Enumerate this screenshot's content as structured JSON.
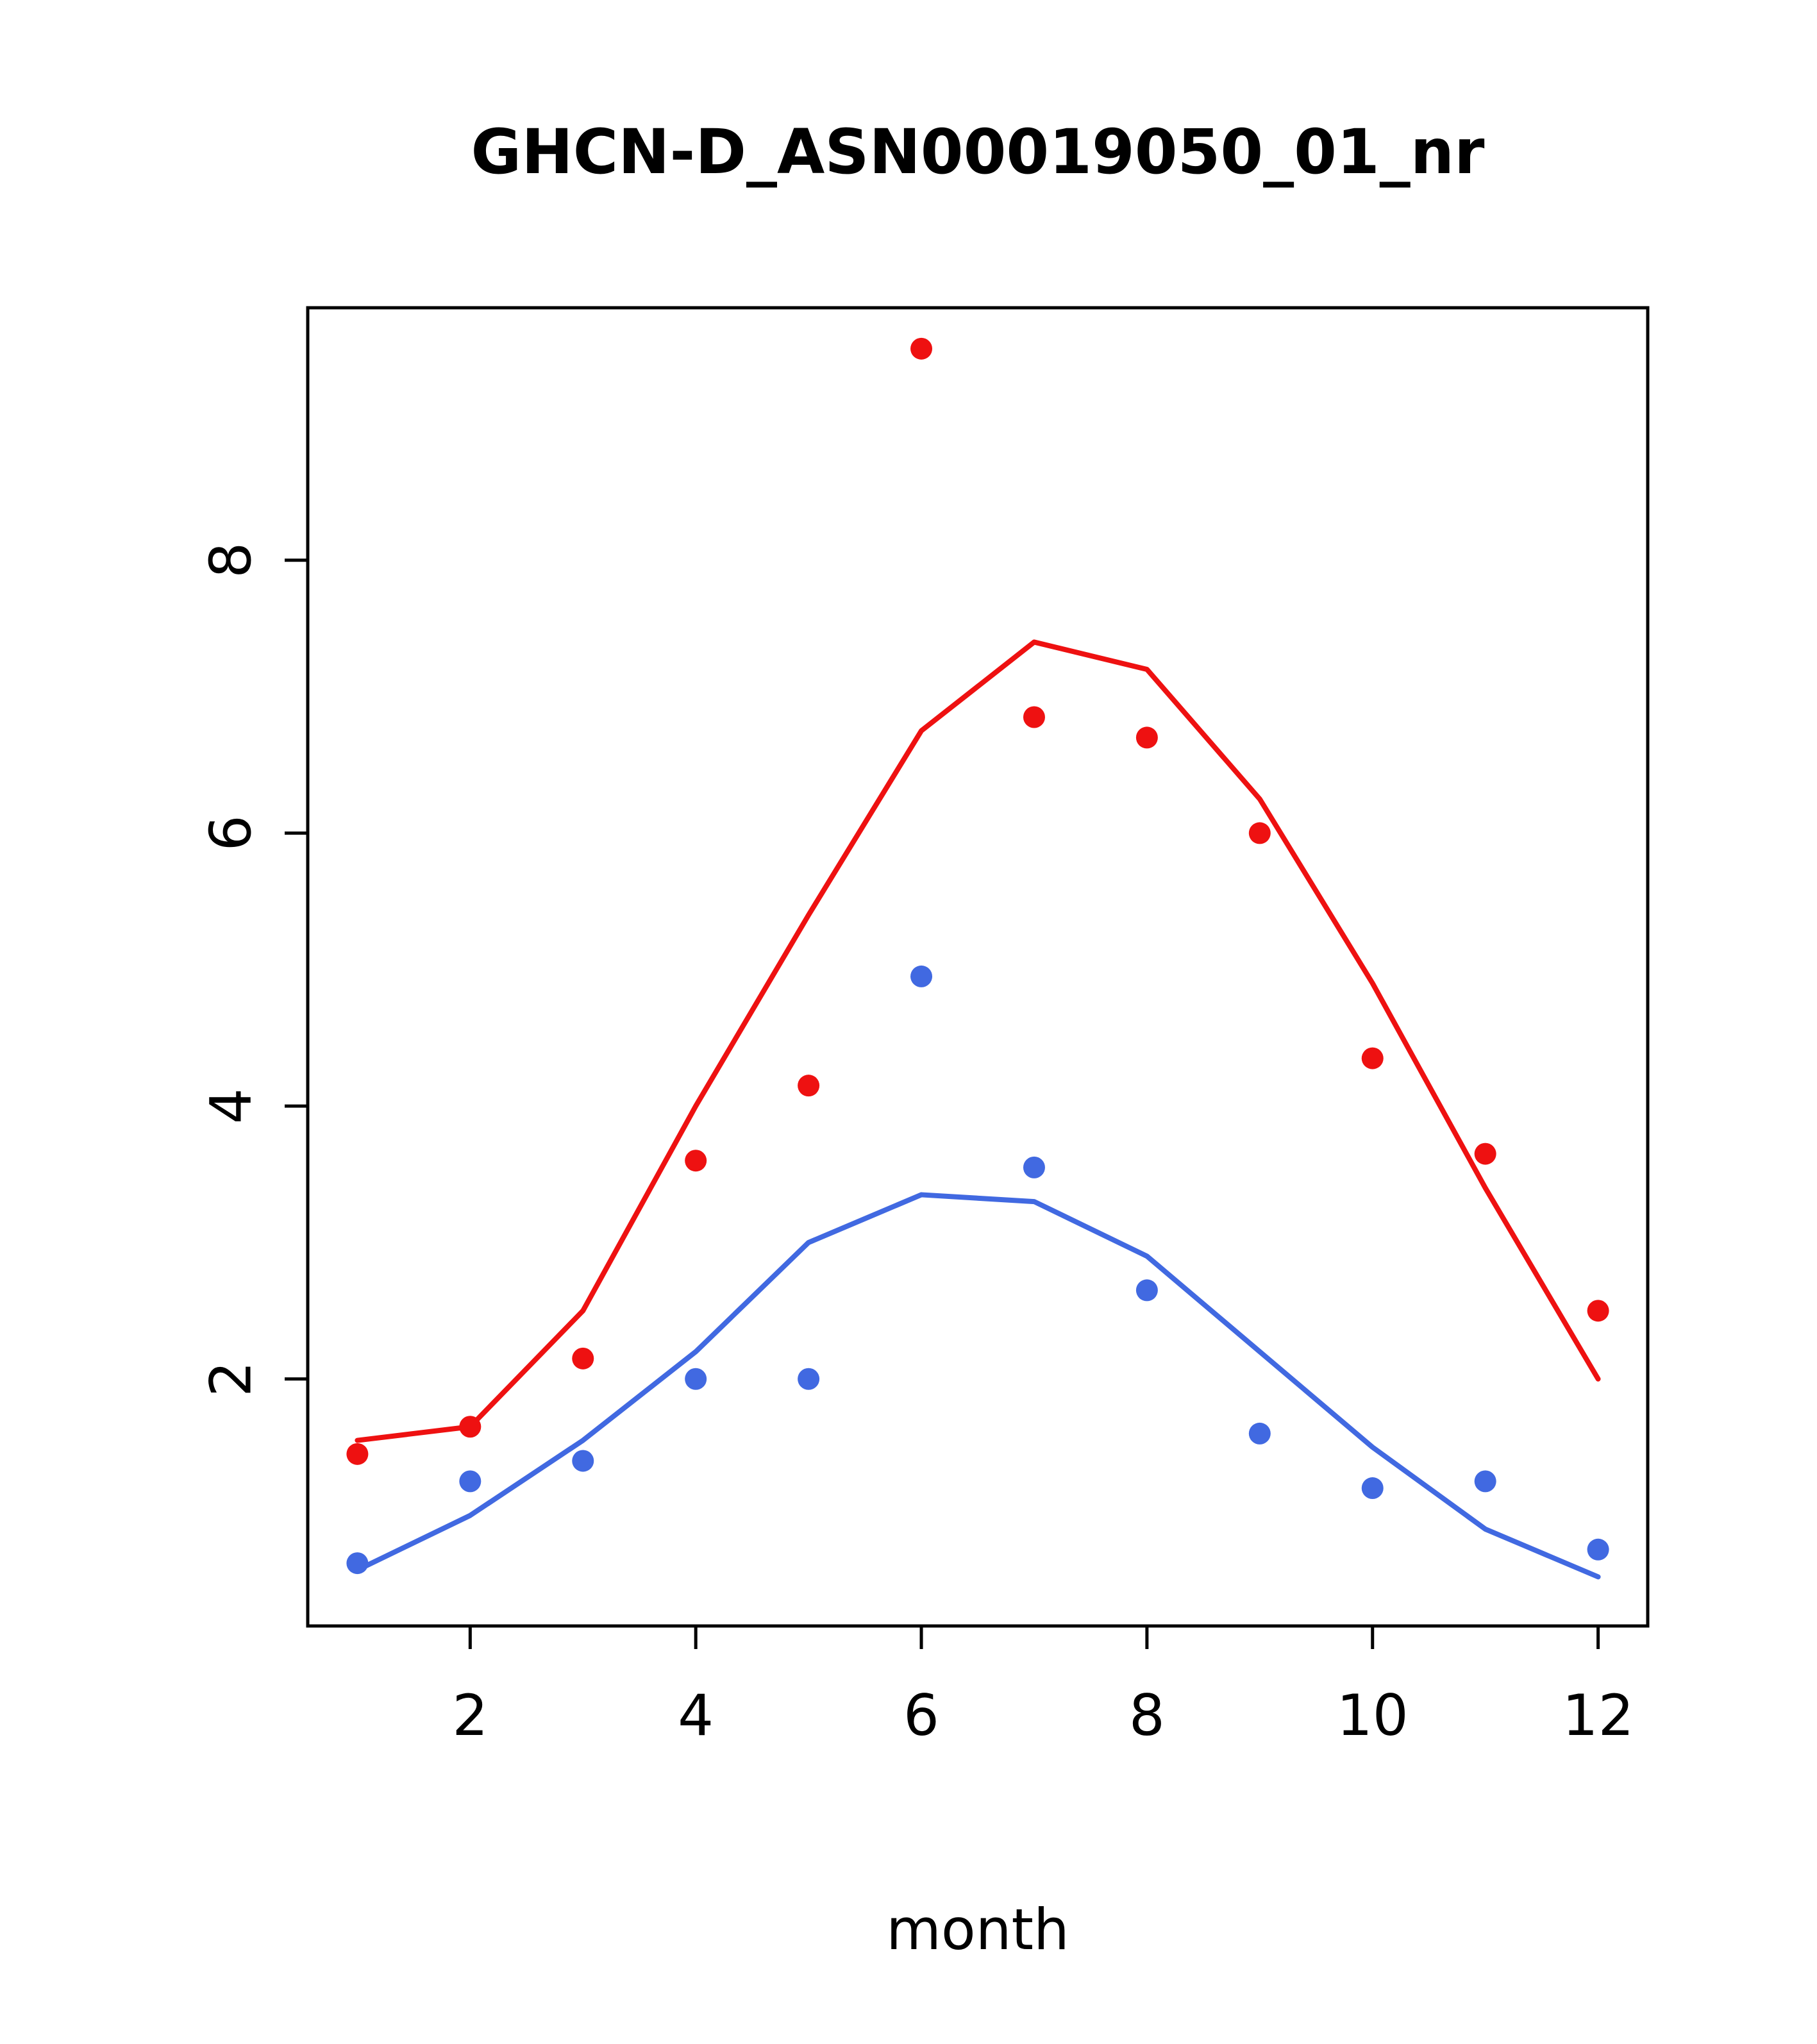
{
  "title": "GHCN-D_ASN00019050_01_nr",
  "chart_data": {
    "type": "line",
    "title": "GHCN-D_ASN00019050_01_nr",
    "xlabel": "month",
    "ylabel": "",
    "grid": false,
    "legend": "none",
    "xlim": [
      0.56,
      12.44
    ],
    "ylim": [
      0.19,
      9.85
    ],
    "xticks": [
      2,
      4,
      6,
      8,
      10,
      12
    ],
    "yticks": [
      2,
      4,
      6,
      8
    ],
    "x": [
      1,
      2,
      3,
      4,
      5,
      6,
      7,
      8,
      9,
      10,
      11,
      12
    ],
    "colors": {
      "red": "#ee1111",
      "blue": "#4169e1"
    },
    "series": [
      {
        "name": "red-observed-points",
        "style": "points",
        "color": "#ee1111",
        "values": [
          1.45,
          1.65,
          2.15,
          3.6,
          4.15,
          9.55,
          6.85,
          6.7,
          6.0,
          4.35,
          3.65,
          2.5
        ]
      },
      {
        "name": "red-fit-line",
        "style": "line",
        "color": "#ee1111",
        "values": [
          1.55,
          1.65,
          2.5,
          4.0,
          5.4,
          6.75,
          7.4,
          7.2,
          6.25,
          4.9,
          3.4,
          2.0
        ]
      },
      {
        "name": "blue-observed-points",
        "style": "points",
        "color": "#4169e1",
        "values": [
          0.65,
          1.25,
          1.4,
          2.0,
          2.0,
          4.95,
          3.55,
          2.65,
          1.6,
          1.2,
          1.25,
          0.75
        ]
      },
      {
        "name": "blue-fit-line",
        "style": "line",
        "color": "#4169e1",
        "values": [
          0.6,
          1.0,
          1.55,
          2.2,
          3.0,
          3.35,
          3.3,
          2.9,
          2.2,
          1.5,
          0.9,
          0.55
        ]
      }
    ]
  }
}
